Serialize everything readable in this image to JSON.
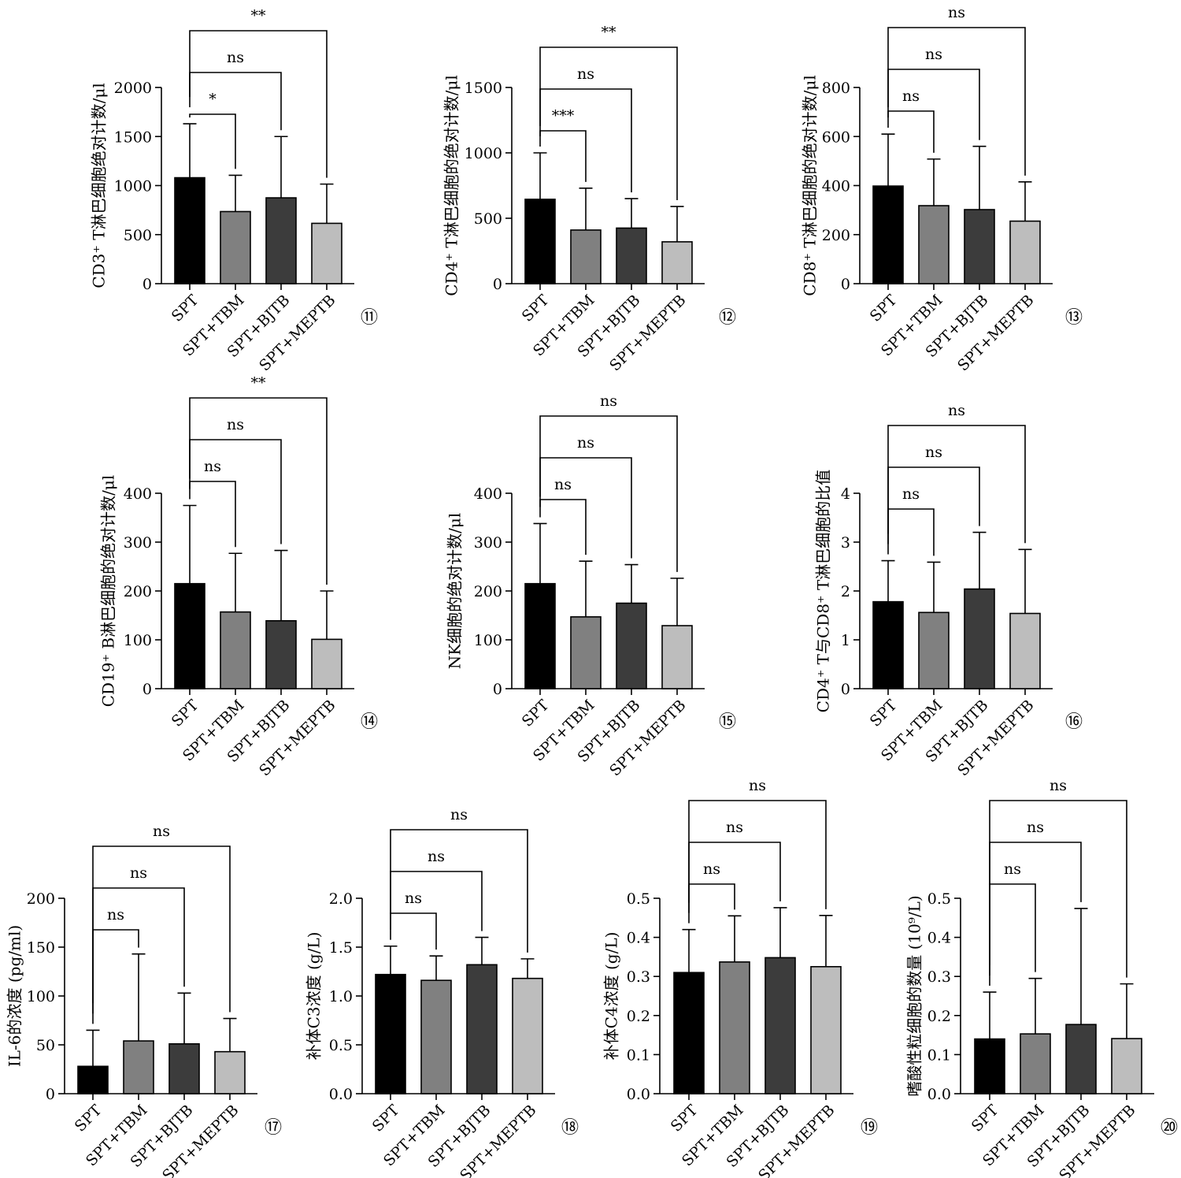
{
  "colors": {
    "SPT": "#000000",
    "SPT+TBM": "#808080",
    "SPT+BJTB": "#3c3c3c",
    "SPT+MEPTB": "#bdbdbd"
  },
  "chart_data": [
    {
      "type": "bar",
      "panel_label": "⑪",
      "ylabel": "CD3⁺ T淋巴细胞绝对计数/μl",
      "categories": [
        "SPT",
        "SPT+TBM",
        "SPT+BJTB",
        "SPT+MEPTB"
      ],
      "values": [
        1080,
        735,
        875,
        615
      ],
      "errors": [
        550,
        370,
        625,
        400
      ],
      "ylim": [
        0,
        2000
      ],
      "yticks": [
        0,
        500,
        1000,
        1500,
        2000
      ],
      "tick_labels": [
        "0",
        "500",
        "1000",
        "1500",
        "2000"
      ],
      "comparisons": [
        {
          "from": 0,
          "to": 1,
          "label": "*"
        },
        {
          "from": 0,
          "to": 2,
          "label": "ns"
        },
        {
          "from": 0,
          "to": 3,
          "label": "**"
        }
      ]
    },
    {
      "type": "bar",
      "panel_label": "⑫",
      "ylabel": "CD4⁺ T淋巴细胞的绝对计数/μl",
      "categories": [
        "SPT",
        "SPT+TBM",
        "SPT+BJTB",
        "SPT+MEPTB"
      ],
      "values": [
        645,
        410,
        425,
        320
      ],
      "errors": [
        355,
        320,
        225,
        270
      ],
      "ylim": [
        0,
        1500
      ],
      "yticks": [
        0,
        500,
        1000,
        1500
      ],
      "tick_labels": [
        "0",
        "500",
        "1000",
        "1500"
      ],
      "comparisons": [
        {
          "from": 0,
          "to": 1,
          "label": "***"
        },
        {
          "from": 0,
          "to": 2,
          "label": "ns"
        },
        {
          "from": 0,
          "to": 3,
          "label": "**"
        }
      ]
    },
    {
      "type": "bar",
      "panel_label": "⑬",
      "ylabel": "CD8⁺ T淋巴细胞的绝对计数/μl",
      "categories": [
        "SPT",
        "SPT+TBM",
        "SPT+BJTB",
        "SPT+MEPTB"
      ],
      "values": [
        398,
        318,
        302,
        255
      ],
      "errors": [
        212,
        190,
        258,
        160
      ],
      "ylim": [
        0,
        800
      ],
      "yticks": [
        0,
        200,
        400,
        600,
        800
      ],
      "tick_labels": [
        "0",
        "200",
        "400",
        "600",
        "800"
      ],
      "comparisons": [
        {
          "from": 0,
          "to": 1,
          "label": "ns"
        },
        {
          "from": 0,
          "to": 2,
          "label": "ns"
        },
        {
          "from": 0,
          "to": 3,
          "label": "ns"
        }
      ]
    },
    {
      "type": "bar",
      "panel_label": "⑭",
      "ylabel": "CD19⁺ B淋巴细胞的绝对计数/μl",
      "categories": [
        "SPT",
        "SPT+TBM",
        "SPT+BJTB",
        "SPT+MEPTB"
      ],
      "values": [
        215,
        157,
        139,
        101
      ],
      "errors": [
        160,
        120,
        144,
        99
      ],
      "ylim": [
        0,
        400
      ],
      "yticks": [
        0,
        100,
        200,
        300,
        400
      ],
      "tick_labels": [
        "0",
        "100",
        "200",
        "300",
        "400"
      ],
      "comparisons": [
        {
          "from": 0,
          "to": 1,
          "label": "ns"
        },
        {
          "from": 0,
          "to": 2,
          "label": "ns"
        },
        {
          "from": 0,
          "to": 3,
          "label": "**"
        }
      ]
    },
    {
      "type": "bar",
      "panel_label": "⑮",
      "ylabel": "NK细胞的绝对计数/μl",
      "categories": [
        "SPT",
        "SPT+TBM",
        "SPT+BJTB",
        "SPT+MEPTB"
      ],
      "values": [
        215,
        147,
        175,
        129
      ],
      "errors": [
        123,
        114,
        79,
        97
      ],
      "ylim": [
        0,
        400
      ],
      "yticks": [
        0,
        100,
        200,
        300,
        400
      ],
      "tick_labels": [
        "0",
        "100",
        "200",
        "300",
        "400"
      ],
      "comparisons": [
        {
          "from": 0,
          "to": 1,
          "label": "ns"
        },
        {
          "from": 0,
          "to": 2,
          "label": "ns"
        },
        {
          "from": 0,
          "to": 3,
          "label": "ns"
        }
      ]
    },
    {
      "type": "bar",
      "panel_label": "⑯",
      "ylabel": "CD4⁺ T与CD8⁺ T淋巴细胞的比值",
      "categories": [
        "SPT",
        "SPT+TBM",
        "SPT+BJTB",
        "SPT+MEPTB"
      ],
      "values": [
        1.78,
        1.56,
        2.04,
        1.54
      ],
      "errors": [
        0.84,
        1.03,
        1.16,
        1.31
      ],
      "ylim": [
        0,
        4
      ],
      "yticks": [
        0,
        1,
        2,
        3,
        4
      ],
      "tick_labels": [
        "0",
        "1",
        "2",
        "3",
        "4"
      ],
      "comparisons": [
        {
          "from": 0,
          "to": 1,
          "label": "ns"
        },
        {
          "from": 0,
          "to": 2,
          "label": "ns"
        },
        {
          "from": 0,
          "to": 3,
          "label": "ns"
        }
      ]
    },
    {
      "type": "bar",
      "panel_label": "⑰",
      "ylabel": "IL-6的浓度 (pg/ml)",
      "categories": [
        "SPT",
        "SPT+TBM",
        "SPT+BJTB",
        "SPT+MEPTB"
      ],
      "values": [
        28,
        54,
        51,
        43
      ],
      "errors": [
        37,
        89,
        52,
        34
      ],
      "ylim": [
        0,
        200
      ],
      "yticks": [
        0,
        50,
        100,
        150,
        200
      ],
      "tick_labels": [
        "0",
        "50",
        "100",
        "150",
        "200"
      ],
      "comparisons": [
        {
          "from": 0,
          "to": 1,
          "label": "ns"
        },
        {
          "from": 0,
          "to": 2,
          "label": "ns"
        },
        {
          "from": 0,
          "to": 3,
          "label": "ns"
        }
      ]
    },
    {
      "type": "bar",
      "panel_label": "⑱",
      "ylabel": "补体C3浓度 (g/L)",
      "categories": [
        "SPT",
        "SPT+TBM",
        "SPT+BJTB",
        "SPT+MEPTB"
      ],
      "values": [
        1.22,
        1.16,
        1.32,
        1.18
      ],
      "errors": [
        0.29,
        0.25,
        0.28,
        0.2
      ],
      "ylim": [
        0,
        2.0
      ],
      "yticks": [
        0,
        0.5,
        1.0,
        1.5,
        2.0
      ],
      "tick_labels": [
        "0.0",
        "0.5",
        "1.0",
        "1.5",
        "2.0"
      ],
      "comparisons": [
        {
          "from": 0,
          "to": 1,
          "label": "ns"
        },
        {
          "from": 0,
          "to": 2,
          "label": "ns"
        },
        {
          "from": 0,
          "to": 3,
          "label": "ns"
        }
      ]
    },
    {
      "type": "bar",
      "panel_label": "⑲",
      "ylabel": "补体C4浓度 (g/L)",
      "categories": [
        "SPT",
        "SPT+TBM",
        "SPT+BJTB",
        "SPT+MEPTB"
      ],
      "values": [
        0.31,
        0.337,
        0.348,
        0.325
      ],
      "errors": [
        0.11,
        0.118,
        0.128,
        0.131
      ],
      "ylim": [
        0,
        0.5
      ],
      "yticks": [
        0,
        0.1,
        0.2,
        0.3,
        0.4,
        0.5
      ],
      "tick_labels": [
        "0.0",
        "0.1",
        "0.2",
        "0.3",
        "0.4",
        "0.5"
      ],
      "comparisons": [
        {
          "from": 0,
          "to": 1,
          "label": "ns"
        },
        {
          "from": 0,
          "to": 2,
          "label": "ns"
        },
        {
          "from": 0,
          "to": 3,
          "label": "ns"
        }
      ]
    },
    {
      "type": "bar",
      "panel_label": "⑳",
      "ylabel": "嗜酸性粒细胞的数量 (10⁹/L)",
      "categories": [
        "SPT",
        "SPT+TBM",
        "SPT+BJTB",
        "SPT+MEPTB"
      ],
      "values": [
        0.14,
        0.153,
        0.177,
        0.141
      ],
      "errors": [
        0.12,
        0.142,
        0.297,
        0.14
      ],
      "ylim": [
        0,
        0.5
      ],
      "yticks": [
        0,
        0.1,
        0.2,
        0.3,
        0.4,
        0.5
      ],
      "tick_labels": [
        "0.0",
        "0.1",
        "0.2",
        "0.3",
        "0.4",
        "0.5"
      ],
      "comparisons": [
        {
          "from": 0,
          "to": 1,
          "label": "ns"
        },
        {
          "from": 0,
          "to": 2,
          "label": "ns"
        },
        {
          "from": 0,
          "to": 3,
          "label": "ns"
        }
      ]
    }
  ]
}
